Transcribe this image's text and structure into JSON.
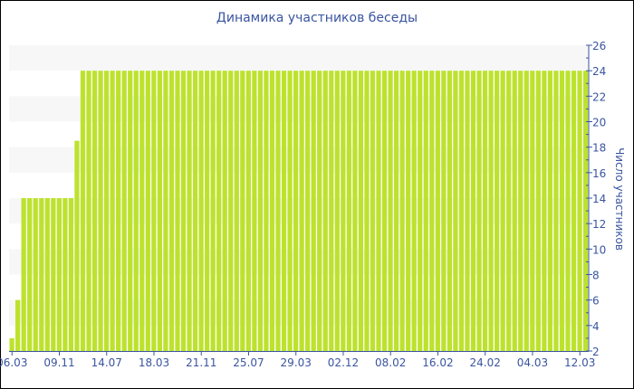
{
  "chart_data": {
    "type": "bar",
    "title": "Динамика участников беседы",
    "xlabel": "",
    "ylabel": "Число участников",
    "ylim": [
      2,
      26
    ],
    "y_ticks": [
      2,
      4,
      6,
      8,
      10,
      12,
      14,
      16,
      18,
      20,
      22,
      24,
      26
    ],
    "y_axis_side": "right",
    "x_tick_labels": [
      "06.03",
      "09.11",
      "14.07",
      "18.03",
      "21.11",
      "25.07",
      "29.03",
      "02.12",
      "08.02",
      "16.02",
      "24.02",
      "04.03",
      "12.03"
    ],
    "bars_per_tick": 8,
    "values": [
      3,
      6,
      14,
      14,
      14,
      14,
      14,
      14,
      14,
      14,
      14,
      18.5,
      24,
      24,
      24,
      24,
      24,
      24,
      24,
      24,
      24,
      24,
      24,
      24,
      24,
      24,
      24,
      24,
      24,
      24,
      24,
      24,
      24,
      24,
      24,
      24,
      24,
      24,
      24,
      24,
      24,
      24,
      24,
      24,
      24,
      24,
      24,
      24,
      24,
      24,
      24,
      24,
      24,
      24,
      24,
      24,
      24,
      24,
      24,
      24,
      24,
      24,
      24,
      24,
      24,
      24,
      24,
      24,
      24,
      24,
      24,
      24,
      24,
      24,
      24,
      24,
      24,
      24,
      24,
      24,
      24,
      24,
      24,
      24,
      24,
      24,
      24,
      24,
      24,
      24,
      24,
      24,
      24,
      24,
      24,
      24,
      24,
      24
    ],
    "bar_color": "#bde22e",
    "band_color": "#f7f7f7",
    "axis_color": "#3a55a0",
    "grid": "alternating bands",
    "legend": "none"
  }
}
